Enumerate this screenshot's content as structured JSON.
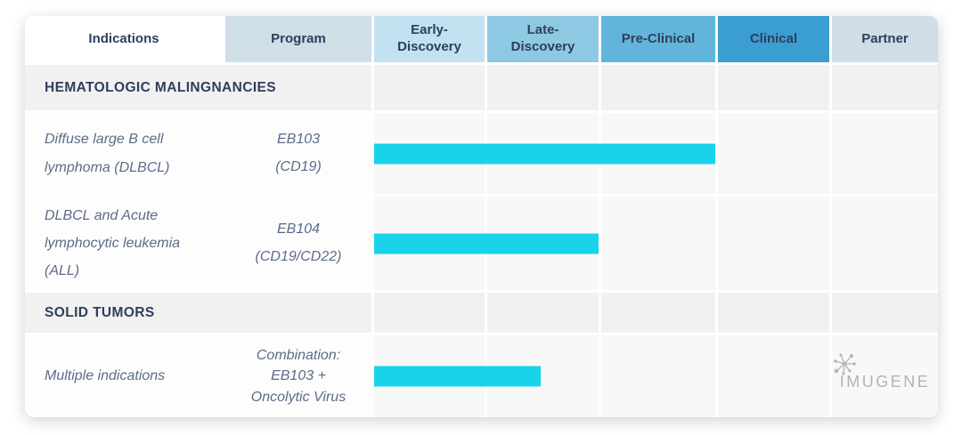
{
  "title": "Imugene clinical pipeline table",
  "colors": {
    "bar_cyan": "#18d3ea",
    "heading_navy": "#2f3e5c",
    "body_slate": "#5d6b88",
    "section_bg": "#f1f1f2",
    "logo_gray": "#b3b3b3"
  },
  "header": {
    "columns": [
      {
        "label": "Indications",
        "bg": "#ffffff"
      },
      {
        "label": "Program",
        "bg": "#cfdfe8"
      },
      {
        "label": "Early-\nDiscovery",
        "bg": "#c2e1f1"
      },
      {
        "label": "Late-\nDiscovery",
        "bg": "#8ec9e4"
      },
      {
        "label": "Pre-Clinical",
        "bg": "#61b5da"
      },
      {
        "label": "Clinical",
        "bg": "#3b9ed2"
      },
      {
        "label": "Partner",
        "bg": "#cfdde6"
      }
    ]
  },
  "rows": [
    {
      "type": "section",
      "label": "HEMATOLOGIC MALINGNANCIES"
    },
    {
      "type": "program",
      "indication": "Diffuse large B cell\nlymphoma (DLBCL)",
      "program": "EB103\n(CD19)",
      "bar": {
        "color": "#18d3ea",
        "width_pct": 75,
        "start_stage": "Early-Discovery",
        "end_stage": "Pre-Clinical"
      }
    },
    {
      "type": "program",
      "indication": "DLBCL and Acute\nlymphocytic leukemia\n(ALL)",
      "program": "EB104\n(CD19/CD22)",
      "bar": {
        "color": "#18d3ea",
        "width_pct": 49.3,
        "start_stage": "Early-Discovery",
        "end_stage": "Late-Discovery"
      }
    },
    {
      "type": "section",
      "label": "SOLID TUMORS"
    },
    {
      "type": "program",
      "indication": "Multiple indications",
      "program": "Combination:\nEB103 +\nOncolytic Virus",
      "bar": {
        "color": "#18d3ea",
        "width_pct": 36.6,
        "start_stage": "Early-Discovery",
        "end_stage": "Late-Discovery (partial)"
      },
      "partner": "IMUGENE"
    }
  ]
}
